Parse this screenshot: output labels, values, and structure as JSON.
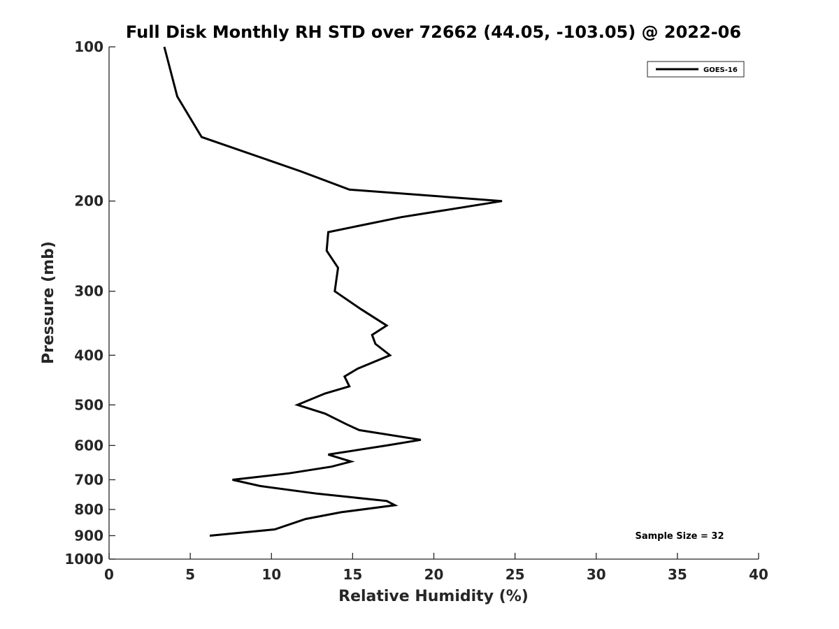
{
  "chart_data": {
    "type": "line",
    "title": "Full Disk Monthly RH STD over 72662 (44.05, -103.05) @ 2022-06",
    "xlabel": "Relative Humidity (%)",
    "ylabel": "Pressure (mb)",
    "xlim": [
      0,
      40
    ],
    "ylim": [
      1000,
      100
    ],
    "y_scale": "log",
    "y_inverted": true,
    "grid": false,
    "legend_position": "top-right",
    "x_ticks": [
      "0",
      "5",
      "10",
      "15",
      "20",
      "25",
      "30",
      "35",
      "40"
    ],
    "y_ticks": [
      "100",
      "200",
      "300",
      "400",
      "500",
      "600",
      "700",
      "800",
      "900",
      "1000"
    ],
    "series": [
      {
        "name": "GOES-16",
        "color": "#000000",
        "points": [
          {
            "x": 3.4,
            "y": 100
          },
          {
            "x": 4.2,
            "y": 125
          },
          {
            "x": 5.7,
            "y": 150
          },
          {
            "x": 11.8,
            "y": 175
          },
          {
            "x": 14.8,
            "y": 190
          },
          {
            "x": 24.2,
            "y": 200
          },
          {
            "x": 18.0,
            "y": 215
          },
          {
            "x": 13.5,
            "y": 230
          },
          {
            "x": 13.4,
            "y": 250
          },
          {
            "x": 14.1,
            "y": 270
          },
          {
            "x": 13.9,
            "y": 300
          },
          {
            "x": 15.5,
            "y": 325
          },
          {
            "x": 17.1,
            "y": 350
          },
          {
            "x": 16.2,
            "y": 365
          },
          {
            "x": 16.4,
            "y": 380
          },
          {
            "x": 17.3,
            "y": 400
          },
          {
            "x": 15.3,
            "y": 425
          },
          {
            "x": 14.5,
            "y": 440
          },
          {
            "x": 14.8,
            "y": 460
          },
          {
            "x": 13.3,
            "y": 475
          },
          {
            "x": 11.6,
            "y": 500
          },
          {
            "x": 13.3,
            "y": 520
          },
          {
            "x": 14.6,
            "y": 545
          },
          {
            "x": 15.4,
            "y": 560
          },
          {
            "x": 19.2,
            "y": 585
          },
          {
            "x": 17.1,
            "y": 600
          },
          {
            "x": 13.5,
            "y": 625
          },
          {
            "x": 14.9,
            "y": 645
          },
          {
            "x": 13.7,
            "y": 660
          },
          {
            "x": 11.1,
            "y": 680
          },
          {
            "x": 7.6,
            "y": 700
          },
          {
            "x": 9.3,
            "y": 720
          },
          {
            "x": 12.8,
            "y": 745
          },
          {
            "x": 17.1,
            "y": 770
          },
          {
            "x": 17.6,
            "y": 785
          },
          {
            "x": 14.3,
            "y": 810
          },
          {
            "x": 12.1,
            "y": 835
          },
          {
            "x": 10.2,
            "y": 875
          },
          {
            "x": 6.2,
            "y": 900
          }
        ]
      }
    ],
    "annotations": [
      "Sample Size = 32"
    ]
  }
}
